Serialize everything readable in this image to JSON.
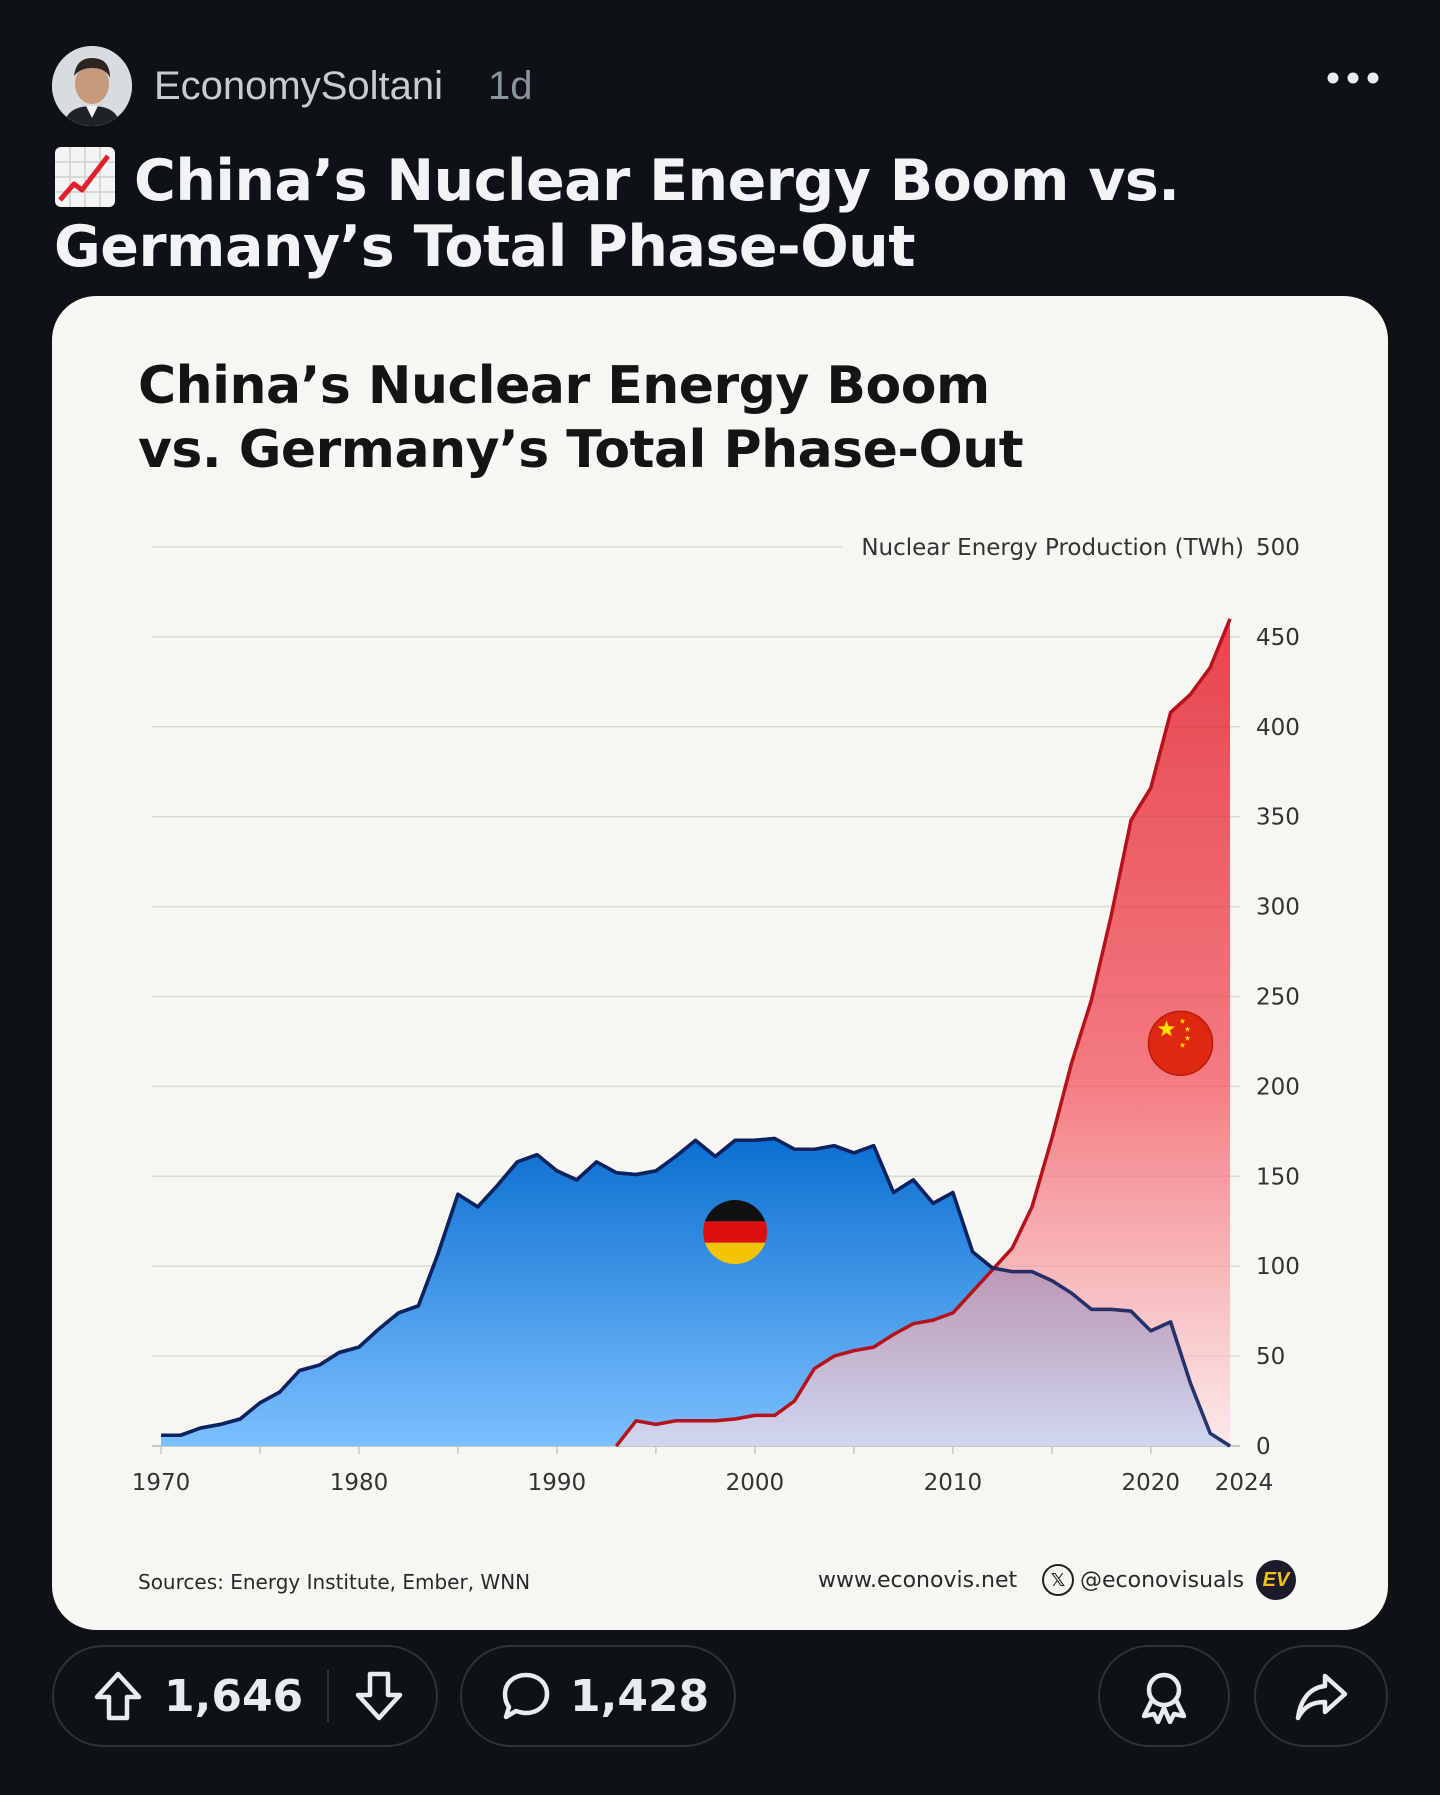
{
  "post": {
    "author": "EconomySoltani",
    "age": "1d",
    "title": "China’s Nuclear Energy Boom vs. Germany’s Total Phase-Out",
    "title_emoji": "chart-increasing-icon"
  },
  "card": {
    "title_line1": "China’s Nuclear Energy Boom",
    "title_line2": "vs. Germany’s Total Phase-Out",
    "sources": "Sources: Energy Institute, Ember, WNN",
    "website": "www.econovis.net",
    "handle": "@econovisuals",
    "logo_text": "EV"
  },
  "actions": {
    "upvotes": "1,646",
    "comments": "1,428"
  },
  "colors": {
    "background": "#0e1216",
    "card": "#f7f6f2",
    "germany_line": "#0d2360",
    "germany_fill_top": "#0b6fd0",
    "germany_fill_bottom": "#7cc0ff",
    "china_line": "#b5121b",
    "china_fill_top": "#e0000f",
    "china_fill_bottom": "#fde3e5"
  },
  "chart_data": {
    "type": "area",
    "title": "China’s Nuclear Energy Boom vs. Germany’s Total Phase-Out",
    "ylabel": "Nuclear Energy Production (TWh)",
    "ylim": [
      0,
      500
    ],
    "yticks": [
      0,
      50,
      100,
      150,
      200,
      250,
      300,
      350,
      400,
      450,
      500
    ],
    "xlim": [
      1970,
      2024
    ],
    "xticks": [
      1970,
      1980,
      1990,
      2000,
      2010,
      2020,
      2024
    ],
    "y_axis_position": "right",
    "grid": true,
    "series": [
      {
        "name": "Germany",
        "marker": "germany-flag",
        "x": [
          1970,
          1971,
          1972,
          1973,
          1974,
          1975,
          1976,
          1977,
          1978,
          1979,
          1980,
          1981,
          1982,
          1983,
          1984,
          1985,
          1986,
          1987,
          1988,
          1989,
          1990,
          1991,
          1992,
          1993,
          1994,
          1995,
          1996,
          1997,
          1998,
          1999,
          2000,
          2001,
          2002,
          2003,
          2004,
          2005,
          2006,
          2007,
          2008,
          2009,
          2010,
          2011,
          2012,
          2013,
          2014,
          2015,
          2016,
          2017,
          2018,
          2019,
          2020,
          2021,
          2022,
          2023,
          2024
        ],
        "values": [
          6,
          6,
          10,
          12,
          15,
          24,
          30,
          42,
          45,
          52,
          55,
          65,
          74,
          78,
          107,
          140,
          133,
          145,
          158,
          162,
          153,
          148,
          158,
          152,
          151,
          153,
          161,
          170,
          161,
          170,
          170,
          171,
          165,
          165,
          167,
          163,
          167,
          141,
          148,
          135,
          141,
          108,
          99,
          97,
          97,
          92,
          85,
          76,
          76,
          75,
          64,
          69,
          35,
          7,
          0
        ]
      },
      {
        "name": "China",
        "marker": "china-flag",
        "x": [
          1993,
          1994,
          1995,
          1996,
          1997,
          1998,
          1999,
          2000,
          2001,
          2002,
          2003,
          2004,
          2005,
          2006,
          2007,
          2008,
          2009,
          2010,
          2011,
          2012,
          2013,
          2014,
          2015,
          2016,
          2017,
          2018,
          2019,
          2020,
          2021,
          2022,
          2023,
          2024
        ],
        "values": [
          0,
          14,
          12,
          14,
          14,
          14,
          15,
          17,
          17,
          25,
          43,
          50,
          53,
          55,
          62,
          68,
          70,
          74,
          86,
          98,
          110,
          133,
          171,
          213,
          248,
          295,
          348,
          366,
          408,
          418,
          433,
          460
        ]
      }
    ]
  }
}
